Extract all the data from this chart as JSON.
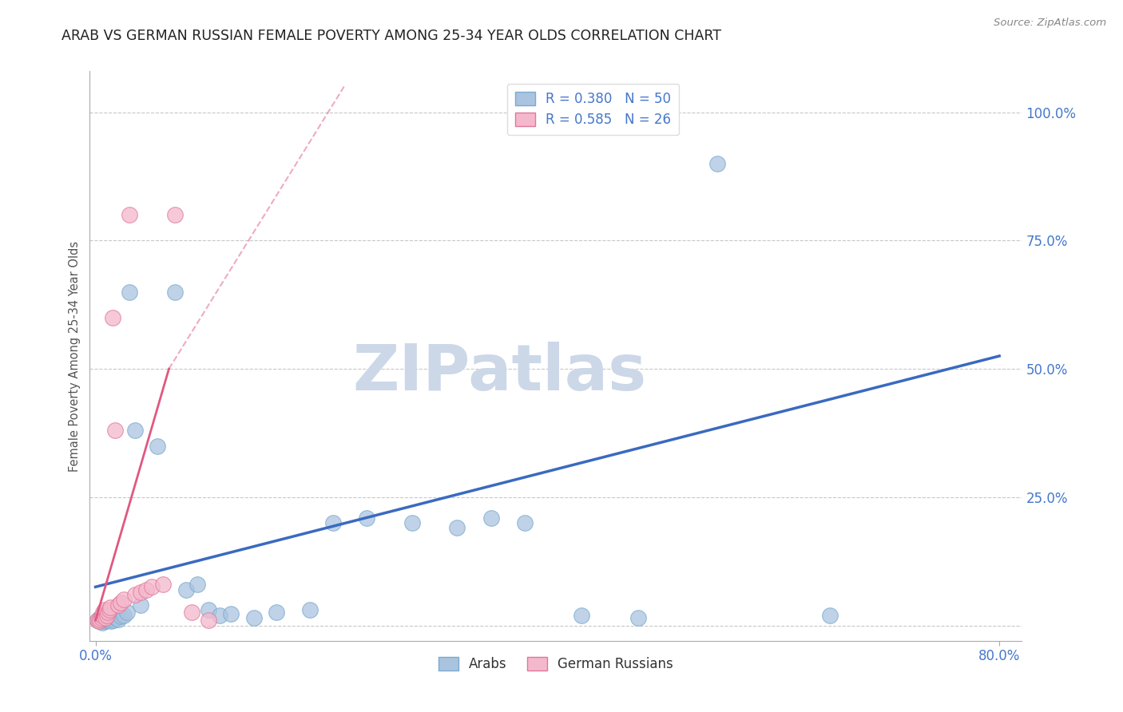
{
  "title": "ARAB VS GERMAN RUSSIAN FEMALE POVERTY AMONG 25-34 YEAR OLDS CORRELATION CHART",
  "source": "Source: ZipAtlas.com",
  "ylabel": "Female Poverty Among 25-34 Year Olds",
  "xlim": [
    -0.005,
    0.82
  ],
  "ylim": [
    -0.03,
    1.08
  ],
  "xtick_positions": [
    0.0,
    0.8
  ],
  "xticklabels": [
    "0.0%",
    "80.0%"
  ],
  "ytick_positions": [
    0.25,
    0.5,
    0.75,
    1.0
  ],
  "yticklabels": [
    "25.0%",
    "50.0%",
    "75.0%",
    "100.0%"
  ],
  "grid_color": "#c8c8c8",
  "bg_color": "#ffffff",
  "arab_color": "#aac4e0",
  "arab_edge_color": "#7aaacf",
  "german_color": "#f4b8cc",
  "german_edge_color": "#e07898",
  "arab_R": 0.38,
  "arab_N": 50,
  "german_R": 0.585,
  "german_N": 26,
  "tick_color": "#4477cc",
  "label_color": "#555555",
  "watermark_color": "#ccd8e8",
  "blue_trend_x0": 0.0,
  "blue_trend_y0": 0.075,
  "blue_trend_x1": 0.8,
  "blue_trend_y1": 0.525,
  "pink_trend_solid_x0": 0.0,
  "pink_trend_solid_y0": 0.01,
  "pink_trend_solid_x1": 0.065,
  "pink_trend_solid_y1": 0.5,
  "pink_trend_dash_x0": 0.065,
  "pink_trend_dash_y0": 0.5,
  "pink_trend_dash_x1": 0.22,
  "pink_trend_dash_y1": 1.05,
  "arab_x": [
    0.002,
    0.003,
    0.003,
    0.004,
    0.004,
    0.005,
    0.005,
    0.006,
    0.006,
    0.007,
    0.007,
    0.008,
    0.008,
    0.009,
    0.01,
    0.01,
    0.011,
    0.012,
    0.013,
    0.014,
    0.015,
    0.016,
    0.018,
    0.02,
    0.022,
    0.025,
    0.028,
    0.03,
    0.035,
    0.04,
    0.055,
    0.07,
    0.08,
    0.09,
    0.1,
    0.11,
    0.12,
    0.14,
    0.16,
    0.19,
    0.21,
    0.24,
    0.28,
    0.32,
    0.35,
    0.38,
    0.43,
    0.48,
    0.55,
    0.65
  ],
  "arab_y": [
    0.01,
    0.012,
    0.008,
    0.01,
    0.015,
    0.01,
    0.008,
    0.012,
    0.006,
    0.01,
    0.015,
    0.01,
    0.012,
    0.008,
    0.012,
    0.01,
    0.015,
    0.012,
    0.018,
    0.008,
    0.015,
    0.01,
    0.015,
    0.012,
    0.018,
    0.02,
    0.025,
    0.65,
    0.38,
    0.04,
    0.35,
    0.65,
    0.07,
    0.08,
    0.03,
    0.02,
    0.022,
    0.015,
    0.025,
    0.03,
    0.2,
    0.21,
    0.2,
    0.19,
    0.21,
    0.2,
    0.02,
    0.015,
    0.9,
    0.02
  ],
  "german_x": [
    0.002,
    0.003,
    0.004,
    0.005,
    0.006,
    0.007,
    0.008,
    0.009,
    0.01,
    0.011,
    0.012,
    0.013,
    0.015,
    0.017,
    0.02,
    0.022,
    0.025,
    0.03,
    0.035,
    0.04,
    0.045,
    0.05,
    0.06,
    0.07,
    0.085,
    0.1
  ],
  "german_y": [
    0.01,
    0.008,
    0.012,
    0.015,
    0.02,
    0.025,
    0.03,
    0.015,
    0.02,
    0.025,
    0.03,
    0.035,
    0.6,
    0.38,
    0.04,
    0.045,
    0.05,
    0.8,
    0.06,
    0.065,
    0.07,
    0.075,
    0.08,
    0.8,
    0.025,
    0.01
  ]
}
